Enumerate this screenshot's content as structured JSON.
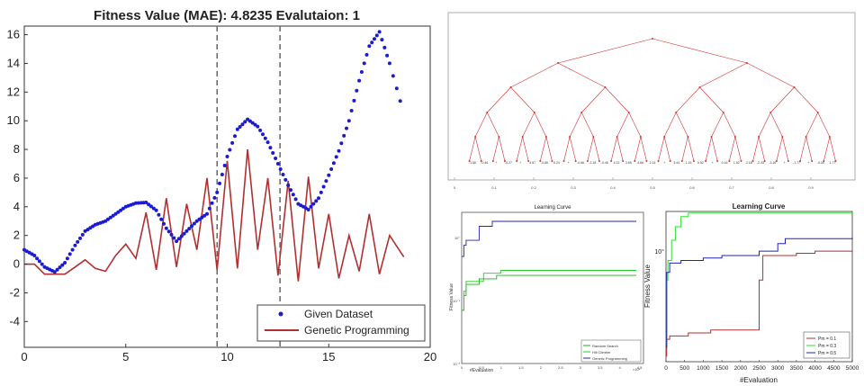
{
  "chart_data": [
    {
      "type": "line",
      "title": "Fitness Value (MAE): 4.8235    Evalutaion: 1",
      "xlim": [
        0,
        20
      ],
      "ylim": [
        -5.8,
        16.6
      ],
      "xticks": [
        "0",
        "5",
        "10",
        "15",
        "20"
      ],
      "yticks": [
        "-4",
        "-2",
        "0",
        "2",
        "4",
        "6",
        "8",
        "10",
        "12",
        "14",
        "16"
      ],
      "dashed_markers_x": [
        9.5,
        12.6
      ],
      "legend": {
        "position": "bottom-right",
        "entries": [
          "Given Dataset",
          "Genetic Programming"
        ]
      },
      "series": [
        {
          "name": "Given Dataset",
          "style": "dots",
          "color": "#1b1bd0",
          "x": [
            0,
            0.5,
            1,
            1.5,
            2,
            2.5,
            3,
            3.5,
            4,
            4.5,
            5,
            5.5,
            6,
            6.5,
            7,
            7.5,
            8,
            8.5,
            9,
            9.5,
            10,
            10.5,
            11,
            11.5,
            12,
            12.5,
            13,
            13.5,
            14,
            14.5,
            15,
            15.5,
            16,
            16.5,
            17,
            17.5,
            18,
            18.7
          ],
          "y": [
            1.0,
            0.6,
            -0.2,
            -0.55,
            0.1,
            1.3,
            2.3,
            2.75,
            3.0,
            3.5,
            4.0,
            4.25,
            4.3,
            3.75,
            2.5,
            1.6,
            2.3,
            3.0,
            3.5,
            5.0,
            7.5,
            9.4,
            10.1,
            9.6,
            8.5,
            7.0,
            5.5,
            4.2,
            3.8,
            4.6,
            6.2,
            7.9,
            10.0,
            12.8,
            15.2,
            16.2,
            14.0,
            10.5
          ]
        },
        {
          "name": "Genetic Programming",
          "style": "line",
          "color": "#b03030",
          "x": [
            0,
            0.5,
            1,
            1.5,
            2,
            2.5,
            3,
            3.5,
            4,
            4.5,
            5,
            5.5,
            6,
            6.5,
            7,
            7.5,
            8,
            8.5,
            9,
            9.5,
            10,
            10.5,
            11,
            11.5,
            12,
            12.5,
            13,
            13.5,
            14,
            14.5,
            15,
            15.5,
            16,
            16.5,
            17,
            17.5,
            18,
            18.7
          ],
          "y": [
            0,
            0,
            -0.7,
            -0.7,
            -0.7,
            -0.2,
            0.3,
            -0.3,
            -0.5,
            0.6,
            1.4,
            0.4,
            3.6,
            -0.4,
            4.6,
            -0.2,
            4.2,
            1.0,
            6.0,
            -0.4,
            7.2,
            -0.3,
            8.0,
            1.0,
            6.0,
            -0.8,
            5.8,
            -1.2,
            6.1,
            -0.3,
            3.5,
            -1.0,
            2.0,
            -0.5,
            3.5,
            -0.7,
            2.0,
            0.5
          ]
        }
      ]
    },
    {
      "type": "diagram",
      "title": "",
      "xlim": [
        0,
        1
      ],
      "xticks": [
        "0",
        "0.1",
        "0.2",
        "0.3",
        "0.4",
        "0.5",
        "0.6",
        "0.7",
        "0.8",
        "0.9"
      ],
      "leaf_labels": [
        "-1.66",
        "-0.46",
        "+",
        "-0.27",
        "+",
        "4.57",
        "-0.66",
        "0.24",
        "+",
        "-0.66",
        "-2.18",
        "-0.46",
        "4.22",
        "3.65",
        "4.66",
        "2.14",
        "+",
        "3.44",
        "1.15",
        "0.92",
        "+",
        "0.16",
        "1.52",
        "-2.18",
        "-2.33",
        "-3.16",
        "+",
        "-1.77",
        "+",
        "-0.04",
        "1.77"
      ]
    },
    {
      "type": "line",
      "title": "Learning Curve",
      "xlabel": "#Evaluation",
      "ylabel": "Fitness Value",
      "xlim": [
        0,
        4
      ],
      "xticks": [
        "0",
        "0.5",
        "1",
        "1.5",
        "2",
        "2.5",
        "3",
        "3.5",
        "4",
        "4.5"
      ],
      "x_multiplier": "×10⁴",
      "yticks": [
        "10°",
        "10⁻¹",
        "10⁻²"
      ],
      "legend": {
        "position": "bottom-right",
        "entries": [
          "Random Search",
          "Hill Climber",
          "Genetic Programming"
        ]
      },
      "series": [
        {
          "name": "Random Search",
          "color": "#22aa22",
          "x": [
            0,
            0.05,
            0.1,
            0.3,
            0.4,
            0.8,
            4.0
          ],
          "y": [
            0.07,
            0.12,
            0.18,
            0.18,
            0.22,
            0.25,
            0.25
          ]
        },
        {
          "name": "Hill Climber",
          "color": "#22cc22",
          "x": [
            0,
            0.05,
            0.1,
            0.3,
            0.5,
            0.8,
            0.9,
            4.0
          ],
          "y": [
            0.07,
            0.14,
            0.2,
            0.2,
            0.27,
            0.27,
            0.3,
            0.3
          ]
        },
        {
          "name": "Genetic Programming",
          "color": "#2222bb",
          "x": [
            0,
            0.05,
            0.1,
            0.3,
            0.4,
            0.6,
            0.7,
            4.0
          ],
          "y": [
            0.5,
            0.75,
            0.9,
            0.9,
            1.5,
            1.5,
            1.8,
            1.8
          ]
        }
      ]
    },
    {
      "type": "line",
      "title": "Learning Curve",
      "xlabel": "#Evaluation",
      "ylabel": "Fitness Value",
      "xlim": [
        0,
        5000
      ],
      "xticks": [
        "0",
        "500",
        "1000",
        "1500",
        "2000",
        "2500",
        "3000",
        "3500",
        "4000",
        "4500",
        "5000"
      ],
      "yticks": [
        "10°"
      ],
      "legend": {
        "position": "bottom-right",
        "entries": [
          "Pm = 0.1",
          "Pm = 0.3",
          "Pm = 0.5"
        ]
      },
      "series": [
        {
          "name": "Pm = 0.1",
          "color": "#b03030",
          "x": [
            0,
            20,
            100,
            600,
            1200,
            2400,
            2500,
            2600,
            3500,
            4000,
            5000
          ],
          "y": [
            0.08,
            0.12,
            0.13,
            0.14,
            0.15,
            0.15,
            0.5,
            0.9,
            0.95,
            1.0,
            1.05
          ]
        },
        {
          "name": "Pm = 0.3",
          "color": "#33dd33",
          "x": [
            0,
            20,
            50,
            150,
            250,
            400,
            600,
            5000
          ],
          "y": [
            0.1,
            0.5,
            0.8,
            1.3,
            1.8,
            2.3,
            2.5,
            2.5
          ]
        },
        {
          "name": "Pm = 0.5",
          "color": "#2222bb",
          "x": [
            0,
            20,
            100,
            400,
            1000,
            1500,
            2500,
            3000,
            3200,
            5000
          ],
          "y": [
            0.1,
            0.6,
            0.75,
            0.8,
            0.85,
            0.9,
            1.0,
            1.2,
            1.35,
            1.4
          ]
        }
      ]
    }
  ]
}
